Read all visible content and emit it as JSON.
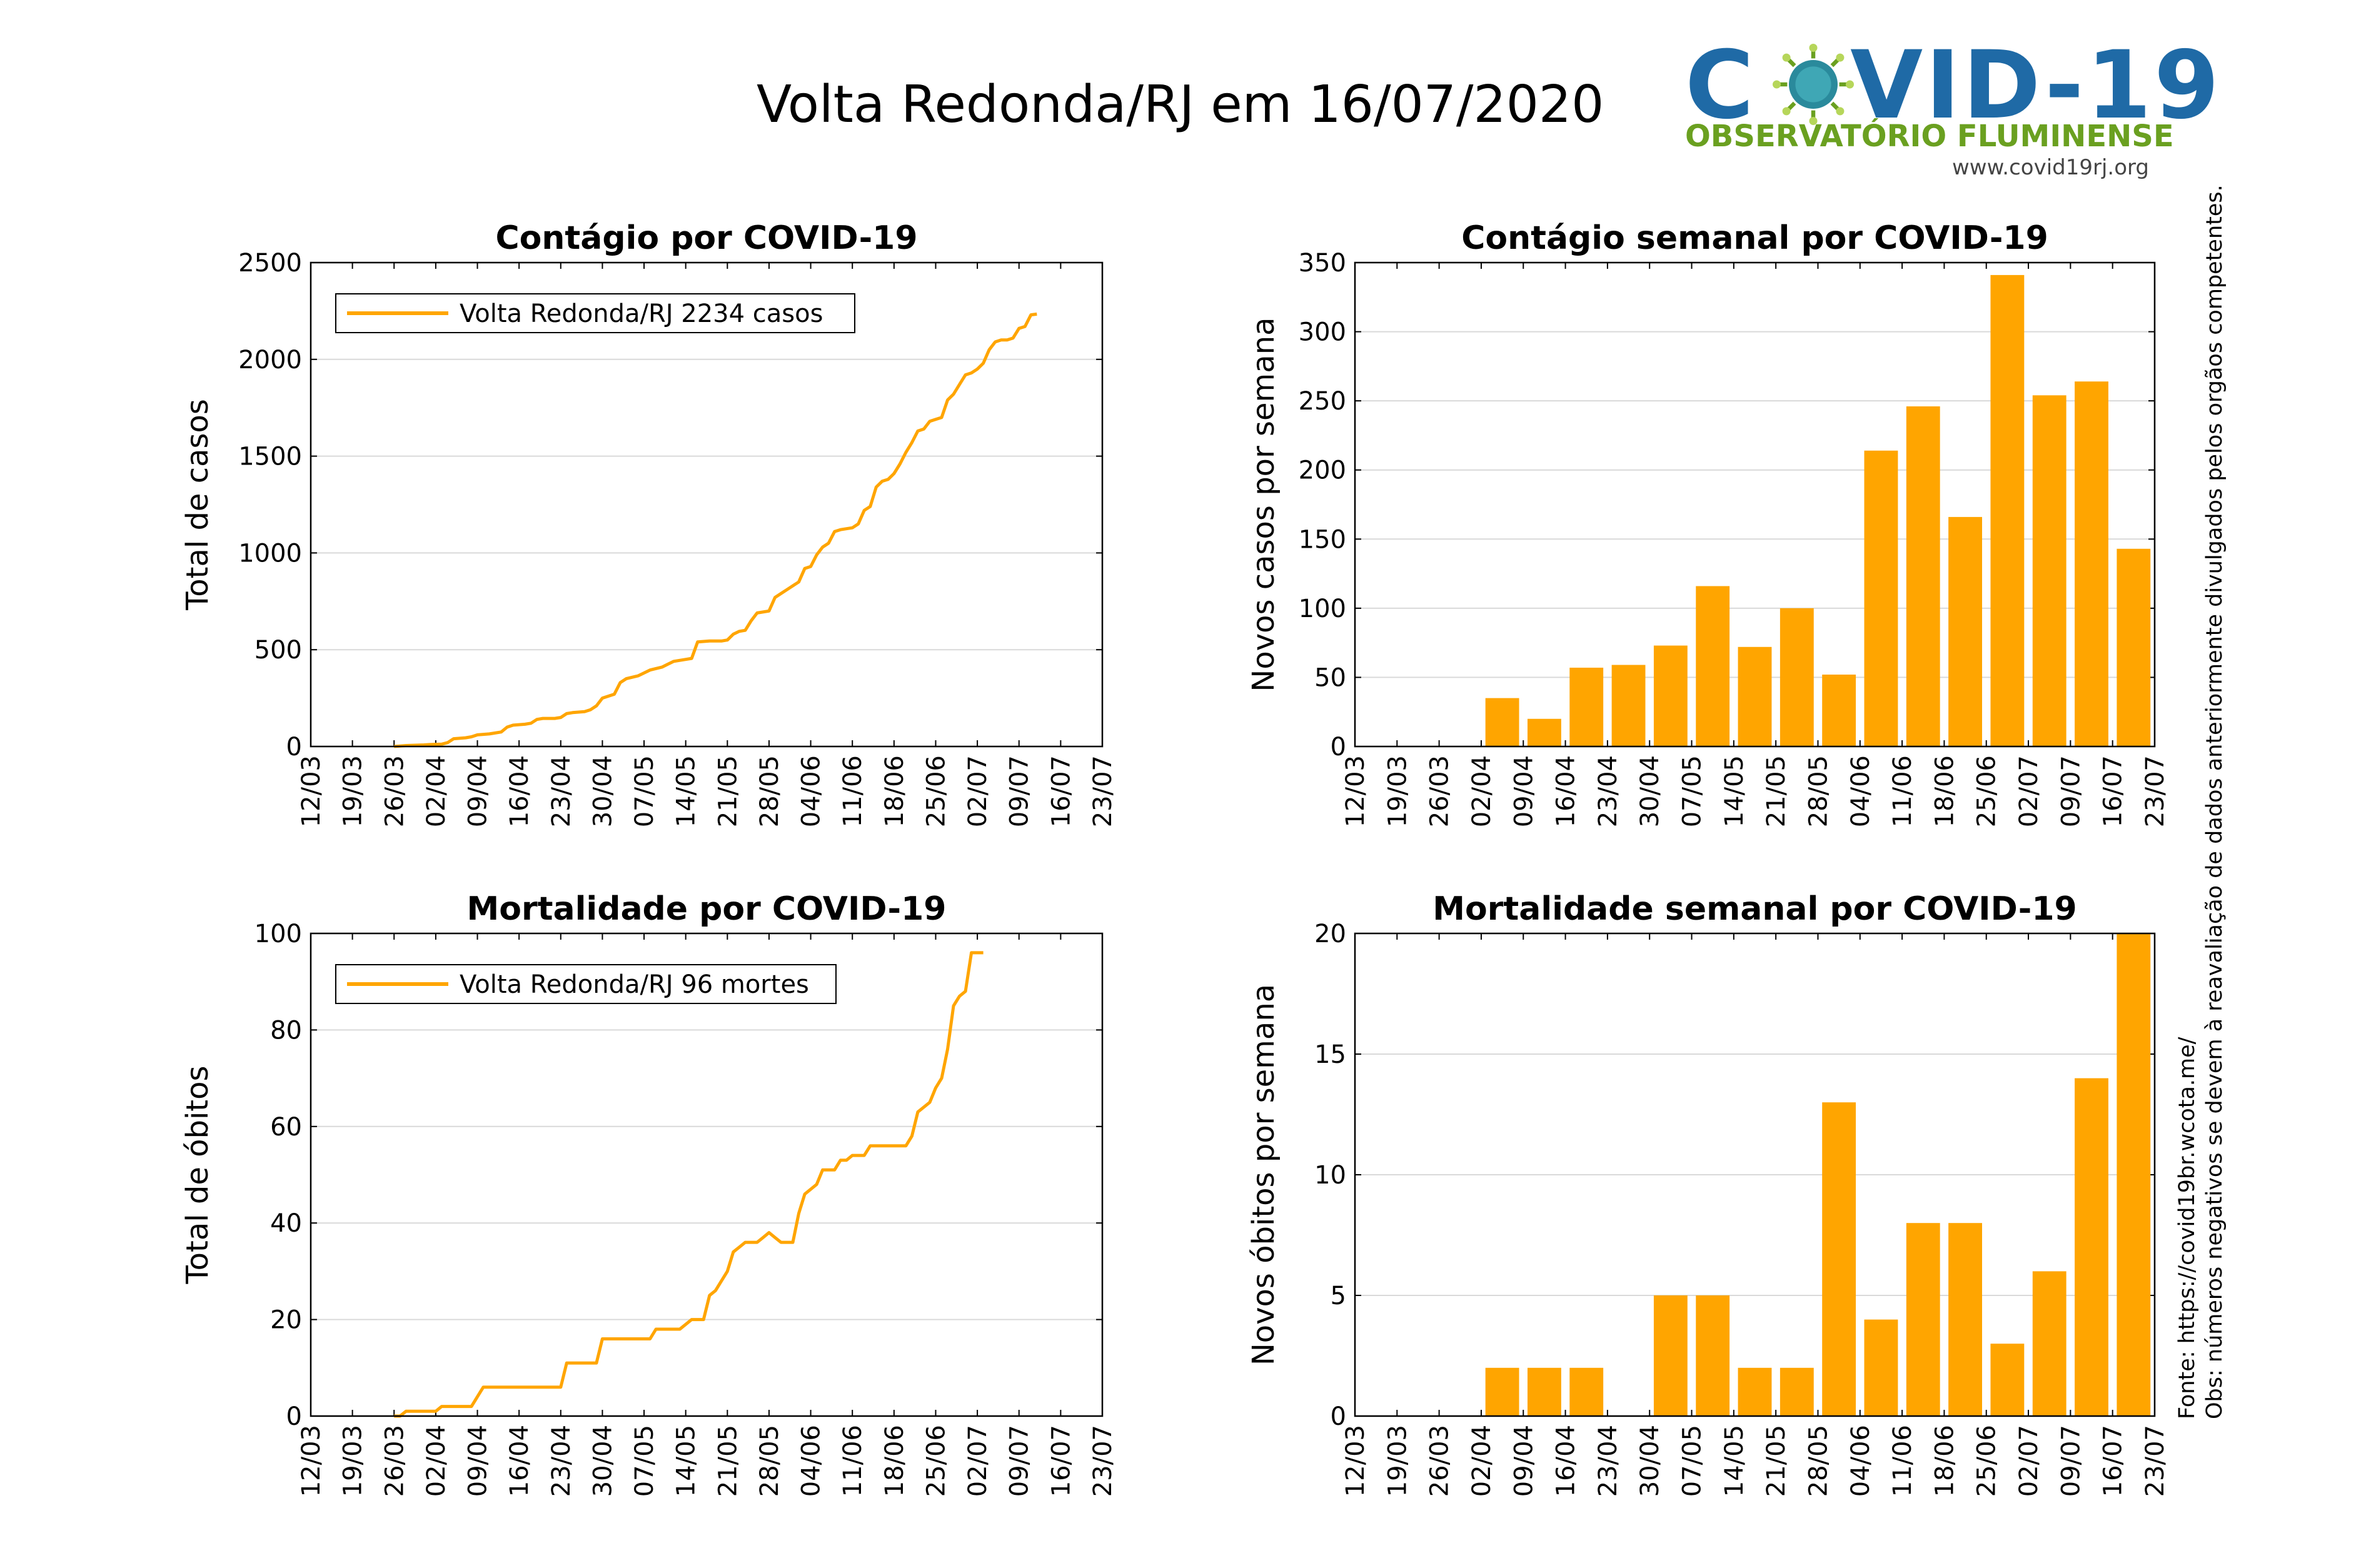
{
  "header": {
    "title": "Volta Redonda/RJ em 16/07/2020"
  },
  "logo": {
    "name": "COVID-19",
    "subtitle": "OBSERVATÓRIO FLUMINENSE",
    "url": "www.covid19rj.org"
  },
  "side_notes": {
    "source": "Fonte: https://covid19br.wcota.me/",
    "note": "Obs: números negativos se devem à reavaliação de dados anteriormente divulgados pelos orgãos competentes."
  },
  "colors": {
    "series": "#FFA500",
    "grid": "#d9d9d9"
  },
  "date_ticks": [
    "12/03",
    "19/03",
    "26/03",
    "02/04",
    "09/04",
    "16/04",
    "23/04",
    "30/04",
    "07/05",
    "14/05",
    "21/05",
    "28/05",
    "04/06",
    "11/06",
    "18/06",
    "25/06",
    "02/07",
    "09/07",
    "16/07",
    "23/07"
  ],
  "chart_data": [
    {
      "id": "cases_cumulative",
      "type": "line",
      "title": "Contágio por COVID-19",
      "ylabel": "Total de casos",
      "ylim": [
        0,
        2500
      ],
      "yticks": [
        0,
        500,
        1000,
        1500,
        2000,
        2500
      ],
      "legend": "Volta Redonda/RJ  2234 casos",
      "legend_position": "top-left",
      "x_units": "days since 12/03",
      "points": [
        [
          14,
          0
        ],
        [
          16,
          5
        ],
        [
          19,
          8
        ],
        [
          20,
          10
        ],
        [
          22,
          12
        ],
        [
          23,
          20
        ],
        [
          24,
          40
        ],
        [
          26,
          45
        ],
        [
          27,
          50
        ],
        [
          28,
          60
        ],
        [
          30,
          65
        ],
        [
          32,
          75
        ],
        [
          33,
          100
        ],
        [
          34,
          110
        ],
        [
          36,
          115
        ],
        [
          37,
          120
        ],
        [
          38,
          140
        ],
        [
          39,
          145
        ],
        [
          41,
          145
        ],
        [
          42,
          150
        ],
        [
          43,
          170
        ],
        [
          44,
          175
        ],
        [
          46,
          180
        ],
        [
          47,
          190
        ],
        [
          48,
          210
        ],
        [
          49,
          250
        ],
        [
          51,
          270
        ],
        [
          52,
          330
        ],
        [
          53,
          350
        ],
        [
          55,
          365
        ],
        [
          56,
          380
        ],
        [
          57,
          395
        ],
        [
          59,
          410
        ],
        [
          60,
          425
        ],
        [
          61,
          440
        ],
        [
          63,
          450
        ],
        [
          64,
          455
        ],
        [
          65,
          540
        ],
        [
          67,
          545
        ],
        [
          69,
          545
        ],
        [
          70,
          550
        ],
        [
          71,
          580
        ],
        [
          72,
          595
        ],
        [
          73,
          600
        ],
        [
          74,
          650
        ],
        [
          75,
          690
        ],
        [
          77,
          700
        ],
        [
          78,
          770
        ],
        [
          79,
          790
        ],
        [
          80,
          810
        ],
        [
          82,
          850
        ],
        [
          83,
          920
        ],
        [
          84,
          930
        ],
        [
          85,
          990
        ],
        [
          86,
          1030
        ],
        [
          87,
          1050
        ],
        [
          88,
          1110
        ],
        [
          89,
          1120
        ],
        [
          91,
          1130
        ],
        [
          92,
          1150
        ],
        [
          93,
          1220
        ],
        [
          94,
          1240
        ],
        [
          95,
          1340
        ],
        [
          96,
          1370
        ],
        [
          97,
          1380
        ],
        [
          98,
          1410
        ],
        [
          99,
          1460
        ],
        [
          100,
          1520
        ],
        [
          101,
          1570
        ],
        [
          102,
          1630
        ],
        [
          103,
          1640
        ],
        [
          104,
          1680
        ],
        [
          105,
          1690
        ],
        [
          106,
          1700
        ],
        [
          107,
          1790
        ],
        [
          108,
          1820
        ],
        [
          109,
          1870
        ],
        [
          110,
          1920
        ],
        [
          111,
          1930
        ],
        [
          112,
          1950
        ],
        [
          113,
          1980
        ],
        [
          114,
          2050
        ],
        [
          115,
          2090
        ],
        [
          116,
          2100
        ],
        [
          117,
          2100
        ],
        [
          118,
          2110
        ],
        [
          119,
          2160
        ],
        [
          120,
          2170
        ],
        [
          121,
          2230
        ],
        [
          122,
          2234
        ]
      ]
    },
    {
      "id": "cases_weekly",
      "type": "bar",
      "title": "Contágio semanal por COVID-19",
      "ylabel": "Novos casos por semana",
      "ylim": [
        0,
        350
      ],
      "yticks": [
        0,
        50,
        100,
        150,
        200,
        250,
        300,
        350
      ],
      "categories": [
        "12/03",
        "19/03",
        "26/03",
        "02/04",
        "09/04",
        "16/04",
        "23/04",
        "30/04",
        "07/05",
        "14/05",
        "21/05",
        "28/05",
        "04/06",
        "11/06",
        "18/06",
        "25/06",
        "02/07",
        "09/07",
        "16/07"
      ],
      "values": [
        0,
        0,
        0,
        35,
        20,
        57,
        59,
        73,
        116,
        72,
        100,
        52,
        214,
        246,
        166,
        341,
        254,
        264,
        143
      ]
    },
    {
      "id": "deaths_cumulative",
      "type": "line",
      "title": "Mortalidade por COVID-19",
      "ylabel": "Total de óbitos",
      "ylim": [
        0,
        100
      ],
      "yticks": [
        0,
        20,
        40,
        60,
        80,
        100
      ],
      "legend": "Volta Redonda/RJ  96 mortes",
      "legend_position": "top-left",
      "x_units": "days since 12/03",
      "points": [
        [
          14,
          0
        ],
        [
          15,
          0
        ],
        [
          16,
          1
        ],
        [
          19,
          1
        ],
        [
          20,
          1
        ],
        [
          21,
          1
        ],
        [
          22,
          2
        ],
        [
          27,
          2
        ],
        [
          28,
          4
        ],
        [
          29,
          6
        ],
        [
          35,
          6
        ],
        [
          42,
          6
        ],
        [
          43,
          11
        ],
        [
          47,
          11
        ],
        [
          48,
          11
        ],
        [
          49,
          16
        ],
        [
          53,
          16
        ],
        [
          56,
          16
        ],
        [
          57,
          16
        ],
        [
          58,
          18
        ],
        [
          62,
          18
        ],
        [
          63,
          19
        ],
        [
          64,
          20
        ],
        [
          66,
          20
        ],
        [
          67,
          25
        ],
        [
          68,
          26
        ],
        [
          69,
          28
        ],
        [
          70,
          30
        ],
        [
          71,
          34
        ],
        [
          72,
          35
        ],
        [
          73,
          36
        ],
        [
          75,
          36
        ],
        [
          76,
          37
        ],
        [
          77,
          38
        ],
        [
          78,
          37
        ],
        [
          79,
          36
        ],
        [
          81,
          36
        ],
        [
          82,
          42
        ],
        [
          83,
          46
        ],
        [
          84,
          47
        ],
        [
          85,
          48
        ],
        [
          86,
          51
        ],
        [
          88,
          51
        ],
        [
          89,
          53
        ],
        [
          90,
          53
        ],
        [
          91,
          54
        ],
        [
          93,
          54
        ],
        [
          94,
          56
        ],
        [
          97,
          56
        ],
        [
          99,
          56
        ],
        [
          100,
          56
        ],
        [
          101,
          58
        ],
        [
          102,
          63
        ],
        [
          103,
          64
        ],
        [
          104,
          65
        ],
        [
          105,
          68
        ],
        [
          106,
          70
        ],
        [
          107,
          76
        ],
        [
          108,
          85
        ],
        [
          109,
          87
        ],
        [
          110,
          88
        ],
        [
          111,
          96
        ],
        [
          112,
          96
        ],
        [
          113,
          96
        ]
      ]
    },
    {
      "id": "deaths_weekly",
      "type": "bar",
      "title": "Mortalidade semanal por COVID-19",
      "ylabel": "Novos óbitos por semana",
      "ylim": [
        0,
        20
      ],
      "yticks": [
        0,
        5,
        10,
        15,
        20
      ],
      "categories": [
        "12/03",
        "19/03",
        "26/03",
        "02/04",
        "09/04",
        "16/04",
        "23/04",
        "30/04",
        "07/05",
        "14/05",
        "21/05",
        "28/05",
        "04/06",
        "11/06",
        "18/06",
        "25/06",
        "02/07",
        "09/07",
        "16/07"
      ],
      "values": [
        0,
        0,
        0,
        2,
        2,
        2,
        0,
        5,
        5,
        2,
        2,
        13,
        4,
        8,
        8,
        3,
        6,
        14,
        20
      ]
    }
  ]
}
